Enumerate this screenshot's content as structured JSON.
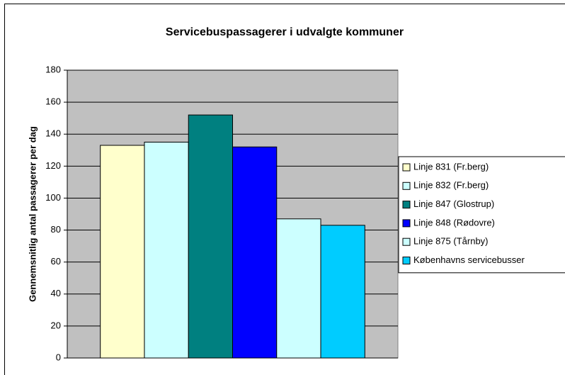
{
  "chart_data": {
    "type": "bar",
    "title": "Servicebuspassagerer i udvalgte kommuner",
    "y_label": "Gennemsnitlig antal passagerer per dag",
    "categories": [
      null
    ],
    "series": [
      {
        "name": "Linje 831 (Fr.berg)",
        "color": "#ffffcc",
        "values": [
          133
        ]
      },
      {
        "name": "Linje 832 (Fr.berg)",
        "color": "#ccffff",
        "values": [
          135
        ]
      },
      {
        "name": "Linje 847 (Glostrup)",
        "color": "#008080",
        "values": [
          152
        ]
      },
      {
        "name": "Linje 848 (Rødovre)",
        "color": "#0000ff",
        "values": [
          132
        ]
      },
      {
        "name": "Linje 875 (Tårnby)",
        "color": "#ccffff",
        "values": [
          87
        ]
      },
      {
        "name": "Københavns servicebusser",
        "color": "#00ccff",
        "values": [
          83
        ]
      }
    ],
    "ylim": [
      0,
      180
    ],
    "yticks": [
      0,
      20,
      40,
      60,
      80,
      100,
      120,
      140,
      160,
      180
    ],
    "grid": true,
    "legend": "right",
    "plot_background": "#c0c0c0"
  }
}
